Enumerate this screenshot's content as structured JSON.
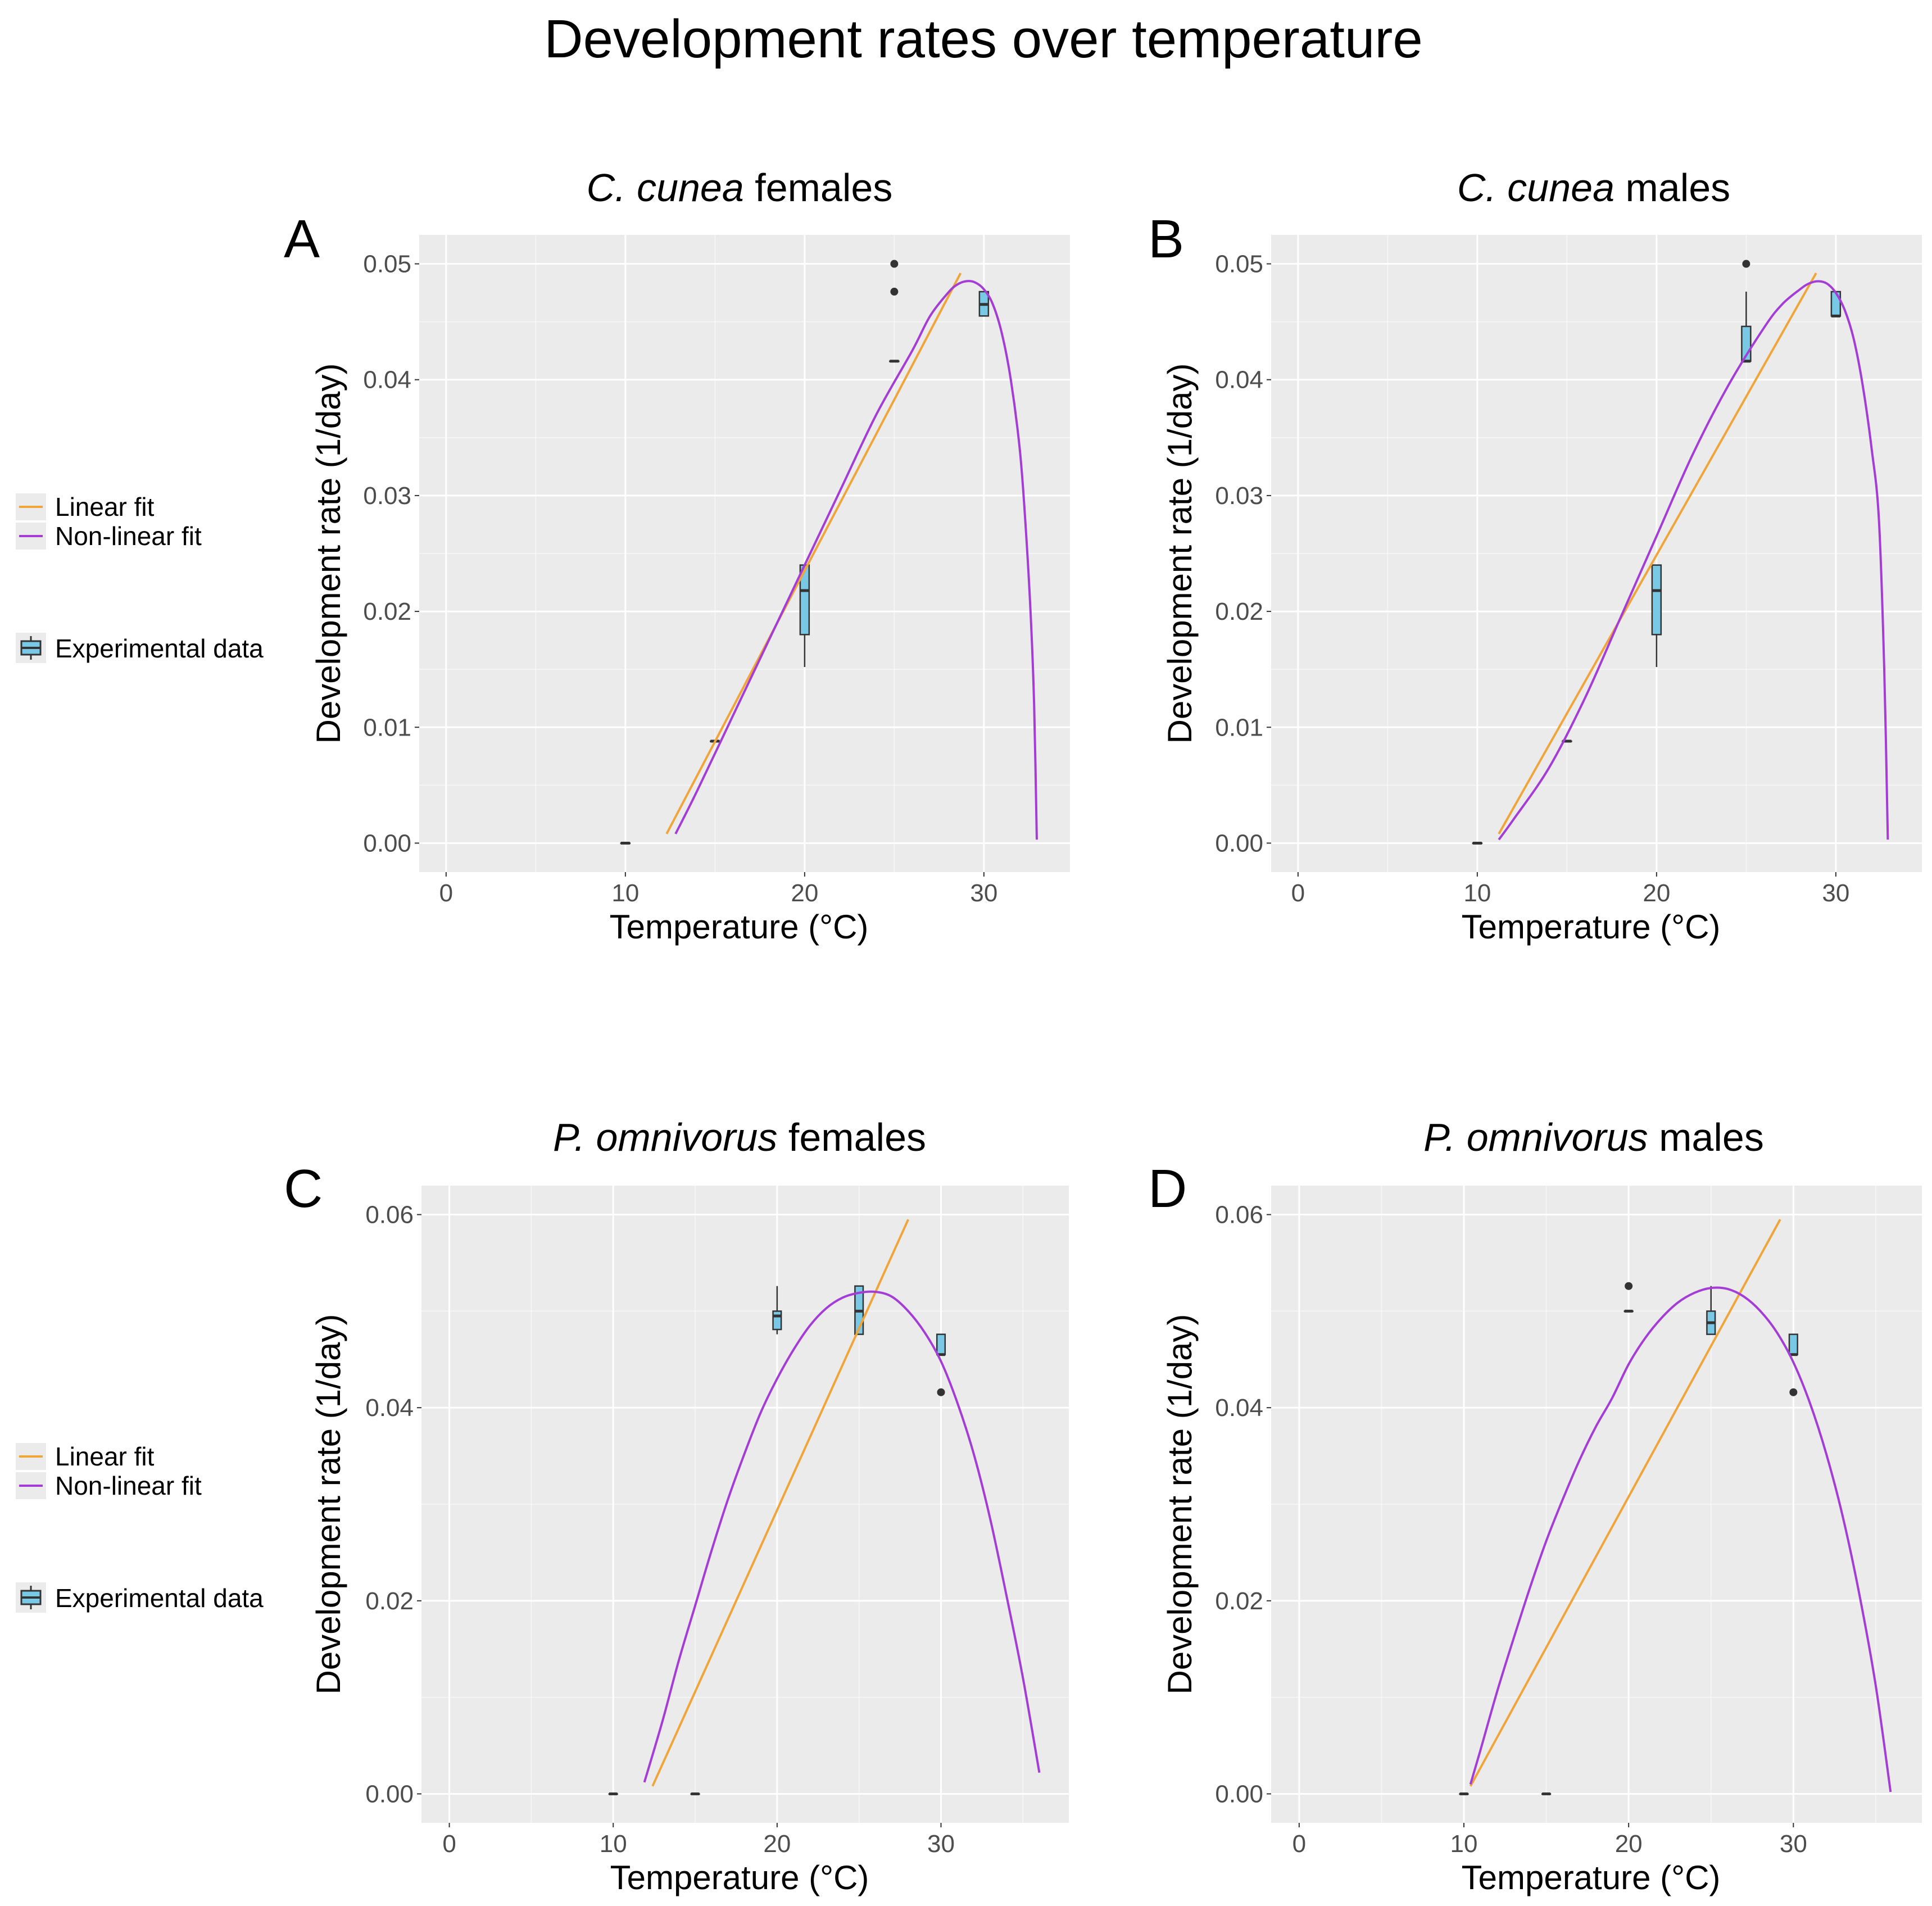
{
  "title": "Development rates over temperature",
  "colors": {
    "linear": "#F0A53A",
    "nonlinear": "#A43CD6",
    "box_fill": "#79C8E6",
    "box_line": "#333333",
    "panel_bg": "#EBEBEB",
    "grid": "#FFFFFF"
  },
  "legends": [
    {
      "linear_label": "Linear fit",
      "nonlinear_label": "Non-linear fit",
      "data_label": "Experimental data"
    },
    {
      "linear_label": "Linear fit",
      "nonlinear_label": "Non-linear fit",
      "data_label": "Experimental data"
    }
  ],
  "chart_data": [
    {
      "letter": "A",
      "title_italic": "C. cunea",
      "title_rest": " females",
      "type": "line+box",
      "xlabel": "Temperature (°C)",
      "ylabel": "Development rate (1/day)",
      "xlim": [
        -1.5,
        34.8
      ],
      "ylim": [
        -0.0025,
        0.0525
      ],
      "xticks": [
        0,
        10,
        20,
        30
      ],
      "xtick_labels": [
        "0",
        "10",
        "20",
        "30"
      ],
      "yticks": [
        0,
        0.01,
        0.02,
        0.03,
        0.04,
        0.05
      ],
      "ytick_labels": [
        "0.00",
        "0.01",
        "0.02",
        "0.03",
        "0.04",
        "0.05"
      ],
      "linear": {
        "x": [
          12.3,
          28.7
        ],
        "y": [
          0.0008,
          0.0492
        ]
      },
      "nonlinear": {
        "x": [
          12.8,
          14,
          16,
          18,
          20,
          22,
          24,
          26,
          27,
          28,
          28.5,
          29,
          29.5,
          30,
          30.5,
          31,
          31.5,
          32,
          32.3,
          32.6,
          32.8,
          32.95
        ],
        "y": [
          0.0008,
          0.0045,
          0.011,
          0.0175,
          0.024,
          0.0305,
          0.037,
          0.0425,
          0.0455,
          0.0475,
          0.0482,
          0.0485,
          0.0484,
          0.0478,
          0.0465,
          0.044,
          0.04,
          0.034,
          0.028,
          0.02,
          0.012,
          0.0003
        ]
      },
      "boxes": [
        {
          "x": 10,
          "min": 0,
          "q1": 0,
          "median": 0,
          "q3": 0,
          "max": 0,
          "outliers": []
        },
        {
          "x": 15,
          "min": 0.0088,
          "q1": 0.0088,
          "median": 0.0088,
          "q3": 0.0088,
          "max": 0.0088,
          "outliers": []
        },
        {
          "x": 20,
          "min": 0.0152,
          "q1": 0.018,
          "median": 0.0218,
          "q3": 0.024,
          "max": 0.024,
          "outliers": []
        },
        {
          "x": 25,
          "min": 0.0416,
          "q1": 0.0416,
          "median": 0.0416,
          "q3": 0.0416,
          "max": 0.0416,
          "outliers": [
            0.05,
            0.0476
          ]
        },
        {
          "x": 30,
          "min": 0.0455,
          "q1": 0.0455,
          "median": 0.0465,
          "q3": 0.0476,
          "max": 0.0476,
          "outliers": []
        }
      ]
    },
    {
      "letter": "B",
      "title_italic": "C. cunea",
      "title_rest": " males",
      "type": "line+box",
      "xlabel": "Temperature (°C)",
      "ylabel": "Development rate (1/day)",
      "xlim": [
        -1.5,
        34.8
      ],
      "ylim": [
        -0.0025,
        0.0525
      ],
      "xticks": [
        0,
        10,
        20,
        30
      ],
      "xtick_labels": [
        "0",
        "10",
        "20",
        "30"
      ],
      "yticks": [
        0,
        0.01,
        0.02,
        0.03,
        0.04,
        0.05
      ],
      "ytick_labels": [
        "0.00",
        "0.01",
        "0.02",
        "0.03",
        "0.04",
        "0.05"
      ],
      "linear": {
        "x": [
          11.2,
          28.9
        ],
        "y": [
          0.0008,
          0.0492
        ]
      },
      "nonlinear": {
        "x": [
          11.2,
          12,
          14,
          16,
          18,
          20,
          22,
          24,
          26,
          27,
          28,
          28.5,
          29,
          29.5,
          30,
          30.5,
          31,
          31.5,
          32,
          32.4,
          32.7,
          32.9
        ],
        "y": [
          0.0003,
          0.002,
          0.0065,
          0.0125,
          0.0195,
          0.0265,
          0.0335,
          0.0395,
          0.0445,
          0.0465,
          0.0478,
          0.0483,
          0.0485,
          0.0483,
          0.0475,
          0.046,
          0.0435,
          0.0395,
          0.034,
          0.028,
          0.015,
          0.0003
        ]
      },
      "boxes": [
        {
          "x": 10,
          "min": 0,
          "q1": 0,
          "median": 0,
          "q3": 0,
          "max": 0,
          "outliers": []
        },
        {
          "x": 15,
          "min": 0.0088,
          "q1": 0.0088,
          "median": 0.0088,
          "q3": 0.0088,
          "max": 0.0088,
          "outliers": []
        },
        {
          "x": 20,
          "min": 0.0152,
          "q1": 0.018,
          "median": 0.0218,
          "q3": 0.024,
          "max": 0.024,
          "outliers": []
        },
        {
          "x": 25,
          "min": 0.0416,
          "q1": 0.0416,
          "median": 0.0416,
          "q3": 0.0446,
          "max": 0.0476,
          "outliers": [
            0.05
          ]
        },
        {
          "x": 30,
          "min": 0.0455,
          "q1": 0.0455,
          "median": 0.0455,
          "q3": 0.0476,
          "max": 0.0476,
          "outliers": []
        }
      ]
    },
    {
      "letter": "C",
      "title_italic": "P. omnivorus",
      "title_rest": " females",
      "type": "line+box",
      "xlabel": "Temperature (°C)",
      "ylabel": "Development rate (1/day)",
      "xlim": [
        -1.7,
        37.8
      ],
      "ylim": [
        -0.003,
        0.063
      ],
      "xticks": [
        0,
        10,
        20,
        30
      ],
      "xtick_labels": [
        "0",
        "10",
        "20",
        "30"
      ],
      "yticks": [
        0,
        0.02,
        0.04,
        0.06
      ],
      "ytick_labels": [
        "0.00",
        "0.02",
        "0.04",
        "0.06"
      ],
      "linear": {
        "x": [
          12.4,
          28.0
        ],
        "y": [
          0.0008,
          0.0595
        ]
      },
      "nonlinear": {
        "x": [
          11.9,
          13,
          14,
          15,
          16,
          17,
          18,
          19,
          20,
          21,
          22,
          23,
          24,
          25,
          26,
          27,
          28,
          29,
          30,
          31,
          32,
          33,
          34,
          35,
          36
        ],
        "y": [
          0.0012,
          0.0075,
          0.0138,
          0.0195,
          0.0252,
          0.0305,
          0.0352,
          0.0395,
          0.043,
          0.046,
          0.0485,
          0.0503,
          0.0514,
          0.0519,
          0.052,
          0.0515,
          0.05,
          0.0478,
          0.0448,
          0.0405,
          0.0352,
          0.0285,
          0.0205,
          0.012,
          0.0022
        ]
      },
      "boxes": [
        {
          "x": 10,
          "min": 0,
          "q1": 0,
          "median": 0,
          "q3": 0,
          "max": 0,
          "outliers": []
        },
        {
          "x": 15,
          "min": 0,
          "q1": 0,
          "median": 0,
          "q3": 0,
          "max": 0,
          "outliers": []
        },
        {
          "x": 20,
          "min": 0.0476,
          "q1": 0.0481,
          "median": 0.0495,
          "q3": 0.05,
          "max": 0.0526,
          "outliers": []
        },
        {
          "x": 25,
          "min": 0.0476,
          "q1": 0.0476,
          "median": 0.05,
          "q3": 0.0526,
          "max": 0.0526,
          "outliers": []
        },
        {
          "x": 30,
          "min": 0.0455,
          "q1": 0.0455,
          "median": 0.0455,
          "q3": 0.0476,
          "max": 0.0476,
          "outliers": [
            0.0416
          ]
        }
      ]
    },
    {
      "letter": "D",
      "title_italic": "P. omnivorus",
      "title_rest": " males",
      "type": "line+box",
      "xlabel": "Temperature (°C)",
      "ylabel": "Development rate (1/day)",
      "xlim": [
        -1.7,
        37.8
      ],
      "ylim": [
        -0.003,
        0.063
      ],
      "xticks": [
        0,
        10,
        20,
        30
      ],
      "xtick_labels": [
        "0",
        "10",
        "20",
        "30"
      ],
      "yticks": [
        0,
        0.02,
        0.04,
        0.06
      ],
      "ytick_labels": [
        "0.00",
        "0.02",
        "0.04",
        "0.06"
      ],
      "linear": {
        "x": [
          10.4,
          29.2
        ],
        "y": [
          0.0008,
          0.0595
        ]
      },
      "nonlinear": {
        "x": [
          10.4,
          11,
          12,
          13,
          14,
          15,
          16,
          17,
          18,
          19,
          20,
          21,
          22,
          23,
          24,
          25,
          26,
          27,
          28,
          29,
          30,
          31,
          32,
          33,
          34,
          35,
          35.9
        ],
        "y": [
          0.001,
          0.0045,
          0.0105,
          0.016,
          0.0213,
          0.0262,
          0.0305,
          0.0345,
          0.038,
          0.041,
          0.0445,
          0.0472,
          0.0493,
          0.0509,
          0.0519,
          0.0524,
          0.0523,
          0.0515,
          0.05,
          0.0478,
          0.0447,
          0.0405,
          0.0352,
          0.0287,
          0.0207,
          0.0112,
          0.0002
        ]
      },
      "boxes": [
        {
          "x": 10,
          "min": 0,
          "q1": 0,
          "median": 0,
          "q3": 0,
          "max": 0,
          "outliers": []
        },
        {
          "x": 15,
          "min": 0,
          "q1": 0,
          "median": 0,
          "q3": 0,
          "max": 0,
          "outliers": []
        },
        {
          "x": 20,
          "min": 0.05,
          "q1": 0.05,
          "median": 0.05,
          "q3": 0.05,
          "max": 0.05,
          "outliers": [
            0.0526
          ]
        },
        {
          "x": 25,
          "min": 0.0476,
          "q1": 0.0476,
          "median": 0.0488,
          "q3": 0.05,
          "max": 0.0526,
          "outliers": []
        },
        {
          "x": 30,
          "min": 0.0455,
          "q1": 0.0455,
          "median": 0.0455,
          "q3": 0.0476,
          "max": 0.0476,
          "outliers": [
            0.0416
          ]
        }
      ]
    }
  ]
}
